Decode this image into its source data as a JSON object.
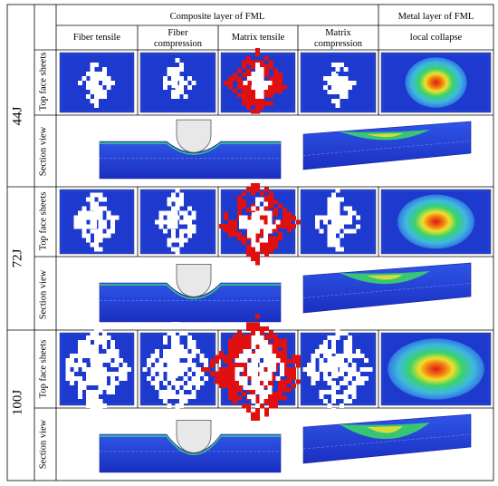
{
  "headers": {
    "composite_group": "Composite layer of FML",
    "metal_group": "Metal layer  of FML",
    "columns": [
      [
        "Fiber tensile"
      ],
      [
        "Fiber",
        "compression"
      ],
      [
        "Matrix tensile"
      ],
      [
        "Matrix",
        "compression"
      ],
      [
        "local collapse"
      ]
    ]
  },
  "row_labels": {
    "top": "Top face sheets",
    "section": "Section view"
  },
  "energies": [
    {
      "label": "44J",
      "damage_scale": 1.0
    },
    {
      "label": "72J",
      "damage_scale": 1.6
    },
    {
      "label": "100J",
      "damage_scale": 2.5
    }
  ],
  "colors": {
    "contour_blue": "#1f3fd6",
    "contour_deep_blue": "#1a2fc0",
    "damage_white": "#ffffff",
    "damage_red": "#e01010",
    "contour_green": "#39d36a",
    "contour_yellow": "#f0e02a",
    "impactor_fill": "#e8e8e8"
  }
}
